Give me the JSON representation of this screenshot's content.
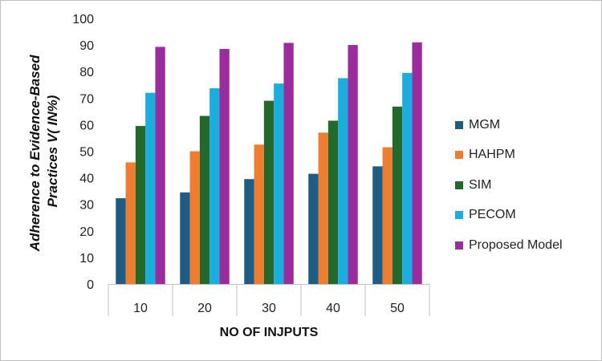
{
  "chart_data": {
    "type": "bar",
    "title": "",
    "xlabel": "NO OF INJPUTS",
    "ylabel_lines": [
      "Adherence to Evidence-Based",
      "Practices V( IN%)"
    ],
    "categories": [
      "10",
      "20",
      "30",
      "40",
      "50"
    ],
    "ylim": [
      0,
      100
    ],
    "yticks": [
      0,
      10,
      20,
      30,
      40,
      50,
      60,
      70,
      80,
      90,
      100
    ],
    "grid": false,
    "legend_position": "right",
    "series": [
      {
        "name": "MGM",
        "color": "#1f5c82",
        "values": [
          32.3,
          34.5,
          39.5,
          41.5,
          44.3
        ]
      },
      {
        "name": "HAHPM",
        "color": "#ed7d31",
        "values": [
          45.8,
          50.0,
          52.5,
          57.0,
          51.5
        ]
      },
      {
        "name": "SIM",
        "color": "#23692b",
        "values": [
          59.5,
          63.3,
          69.0,
          61.5,
          66.8
        ]
      },
      {
        "name": "PECOM",
        "color": "#1aaedf",
        "values": [
          72.0,
          73.7,
          75.5,
          77.5,
          79.5
        ]
      },
      {
        "name": "Proposed Model",
        "color": "#9b2c9e",
        "values": [
          89.3,
          88.5,
          90.8,
          90.0,
          91.0
        ]
      }
    ]
  }
}
